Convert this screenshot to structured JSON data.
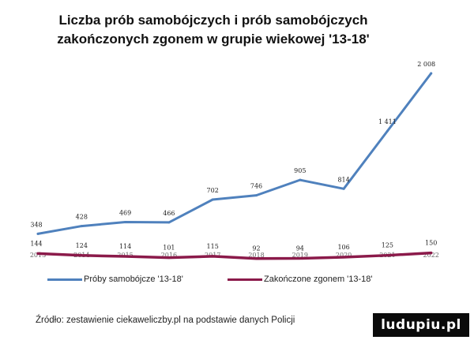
{
  "title_lines": [
    "Liczba prób samobójczych i prób samobójczych",
    "zakończonych zgonem w grupie wiekowej '13-18'"
  ],
  "chart_data": {
    "type": "line",
    "categories": [
      "2013",
      "2014",
      "2015",
      "2016",
      "2017",
      "2018",
      "2019",
      "2020",
      "2021",
      "2022"
    ],
    "series": [
      {
        "name": "Próby samobójcze '13-18'",
        "values": [
          348,
          428,
          469,
          466,
          702,
          746,
          905,
          814,
          1411,
          2008
        ],
        "labels": [
          "348",
          "428",
          "469",
          "466",
          "702",
          "746",
          "905",
          "814",
          "1 411",
          "2 008"
        ],
        "color": "#4f81bd"
      },
      {
        "name": "Zakończone zgonem '13-18'",
        "values": [
          144,
          124,
          114,
          101,
          115,
          92,
          94,
          106,
          125,
          150
        ],
        "labels": [
          "144",
          "124",
          "114",
          "101",
          "115",
          "92",
          "94",
          "106",
          "125",
          "150"
        ],
        "color": "#8b1a4a"
      }
    ],
    "grid": false,
    "legend": "bottom"
  },
  "source": "Źródło: zestawienie ciekaweliczby.pl na podstawie danych Policji",
  "watermark": "ludupiu.pl"
}
